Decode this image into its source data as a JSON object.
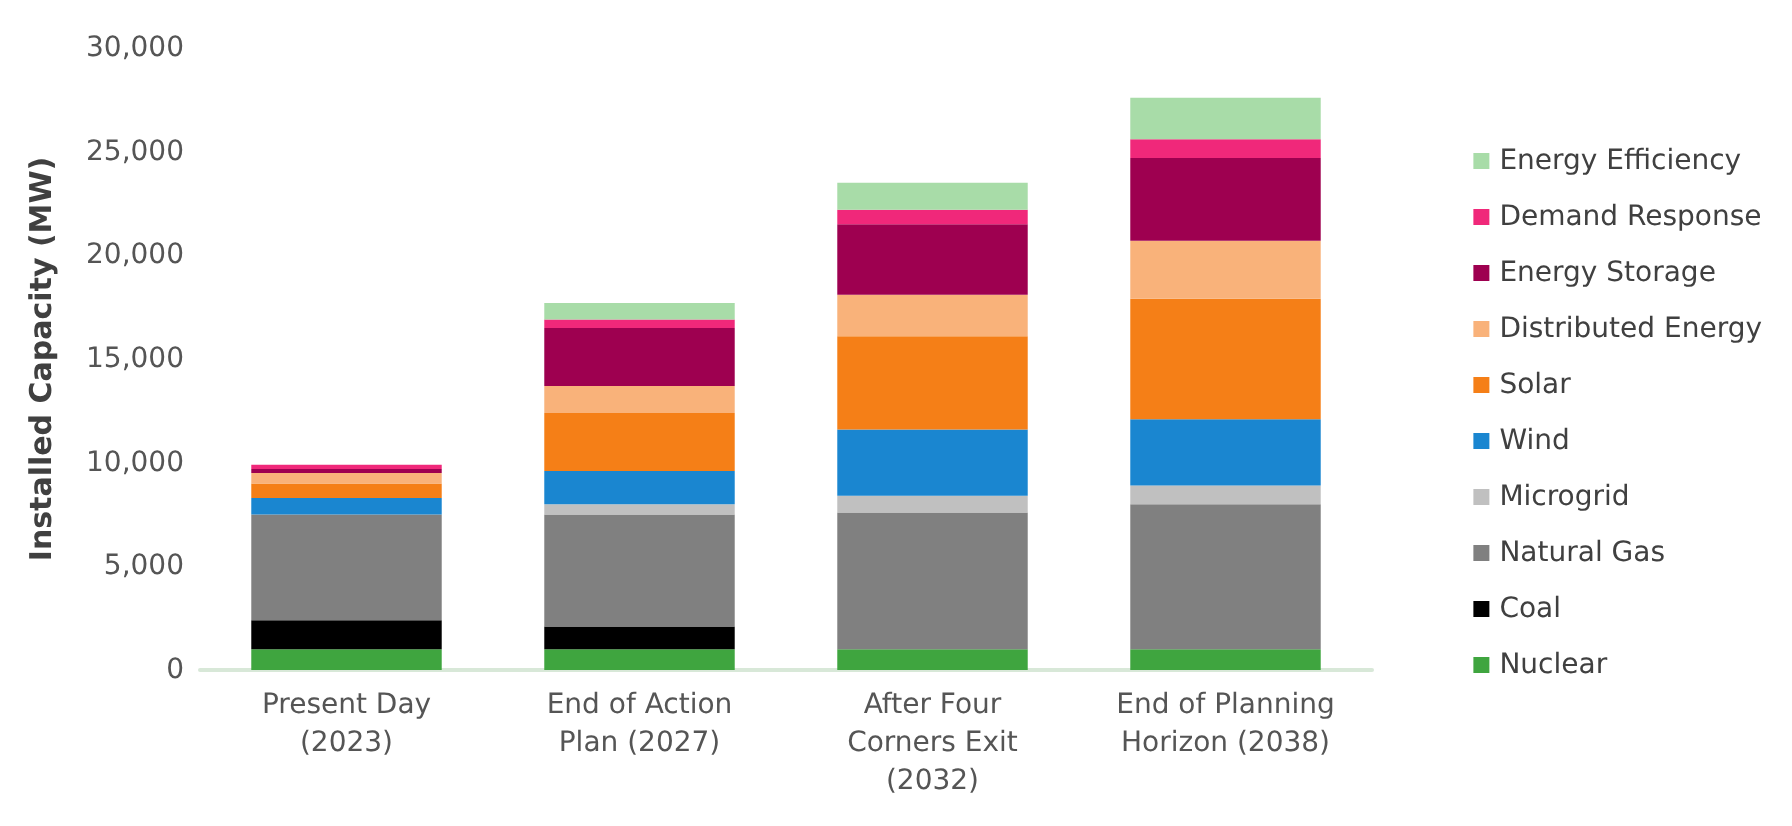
{
  "chart_data": {
    "type": "bar",
    "stacked": true,
    "ylabel": "Installed Capacity (MW)",
    "categories": [
      "Present Day\n(2023)",
      "End of Action\nPlan (2027)",
      "After Four\nCorners Exit\n(2032)",
      "End of Planning\nHorizon (2038)"
    ],
    "series": [
      {
        "name": "Nuclear",
        "color": "#3fa53f",
        "values": [
          1000,
          1000,
          1000,
          1000
        ]
      },
      {
        "name": "Coal",
        "color": "#000000",
        "values": [
          1400,
          1100,
          0,
          0
        ]
      },
      {
        "name": "Natural Gas",
        "color": "#808080",
        "values": [
          5100,
          5400,
          6600,
          7000
        ]
      },
      {
        "name": "Microgrid",
        "color": "#c0c0c0",
        "values": [
          0,
          500,
          800,
          900
        ]
      },
      {
        "name": "Wind",
        "color": "#1a86d0",
        "values": [
          800,
          1600,
          3200,
          3200
        ]
      },
      {
        "name": "Solar",
        "color": "#f57f17",
        "values": [
          700,
          2800,
          4500,
          5800
        ]
      },
      {
        "name": "Distributed Energy",
        "color": "#f9b27a",
        "values": [
          500,
          1300,
          2000,
          2800
        ]
      },
      {
        "name": "Energy Storage",
        "color": "#9e0050",
        "values": [
          200,
          2800,
          3400,
          4000
        ]
      },
      {
        "name": "Demand Response",
        "color": "#f0287a",
        "values": [
          200,
          400,
          700,
          900
        ]
      },
      {
        "name": "Energy Efficiency",
        "color": "#a8dca8",
        "values": [
          null,
          800,
          1300,
          2000
        ]
      }
    ],
    "ylim": [
      0,
      30000
    ],
    "yticks": [
      0,
      {
        "value": 5000,
        "label": "5,000"
      },
      {
        "value": 10000,
        "label": "10,000"
      },
      {
        "value": 15000,
        "label": "15,000"
      },
      {
        "value": 20000,
        "label": "20,000"
      },
      {
        "value": 25000,
        "label": "25,000"
      },
      {
        "value": 30000,
        "label": "30,000"
      }
    ],
    "grid": false,
    "legend": "right"
  }
}
